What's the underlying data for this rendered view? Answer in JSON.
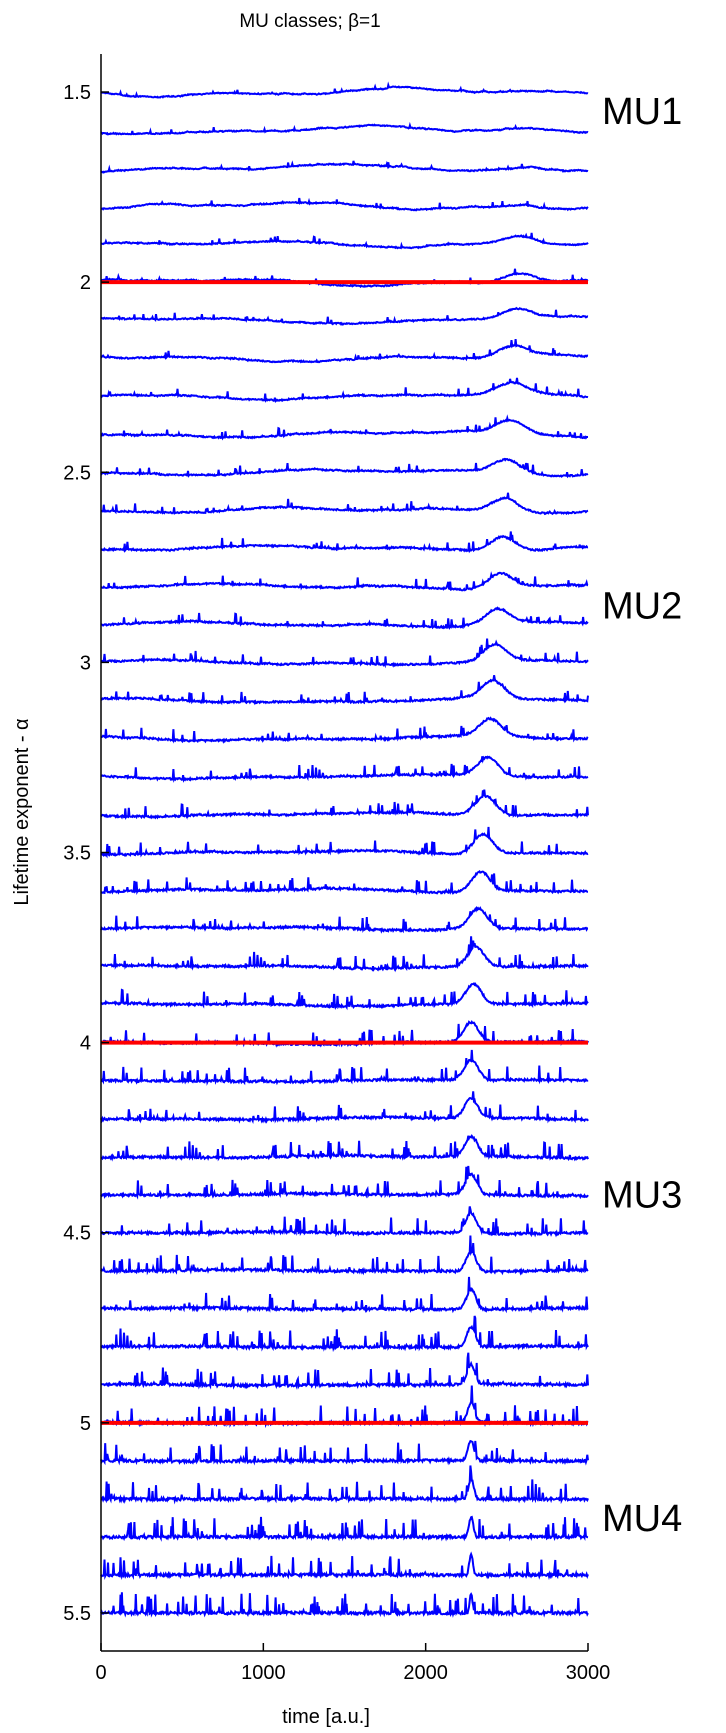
{
  "chart_data": {
    "type": "line",
    "title": "MU classes; β=1",
    "xlabel": "time [a.u.]",
    "ylabel": "Lifetime exponent - α",
    "xlim": [
      0,
      3000
    ],
    "ylim": [
      5.6,
      1.4
    ],
    "y_reversed": true,
    "x_ticks": [
      0,
      1000,
      2000,
      3000
    ],
    "y_ticks": [
      1.5,
      2,
      2.5,
      3,
      3.5,
      4,
      4.5,
      5,
      5.5
    ],
    "grid": false,
    "series_offsets": [
      1.5,
      1.6,
      1.7,
      1.8,
      1.9,
      2.0,
      2.1,
      2.2,
      2.3,
      2.4,
      2.5,
      2.6,
      2.7,
      2.8,
      2.9,
      3.0,
      3.1,
      3.2,
      3.3,
      3.4,
      3.5,
      3.6,
      3.7,
      3.8,
      3.9,
      4.0,
      4.1,
      4.2,
      4.3,
      4.4,
      4.5,
      4.6,
      4.7,
      4.8,
      4.9,
      5.0,
      5.1,
      5.2,
      5.3,
      5.4,
      5.5
    ],
    "series_color": "#0000ff",
    "boundary_color": "#ff0000",
    "boundaries": [
      2.0,
      4.0,
      5.0
    ],
    "class_labels": [
      {
        "text": "MU1",
        "y": 1.55
      },
      {
        "text": "MU2",
        "y": 2.85
      },
      {
        "text": "MU3",
        "y": 4.4
      },
      {
        "text": "MU4",
        "y": 5.25
      }
    ]
  }
}
